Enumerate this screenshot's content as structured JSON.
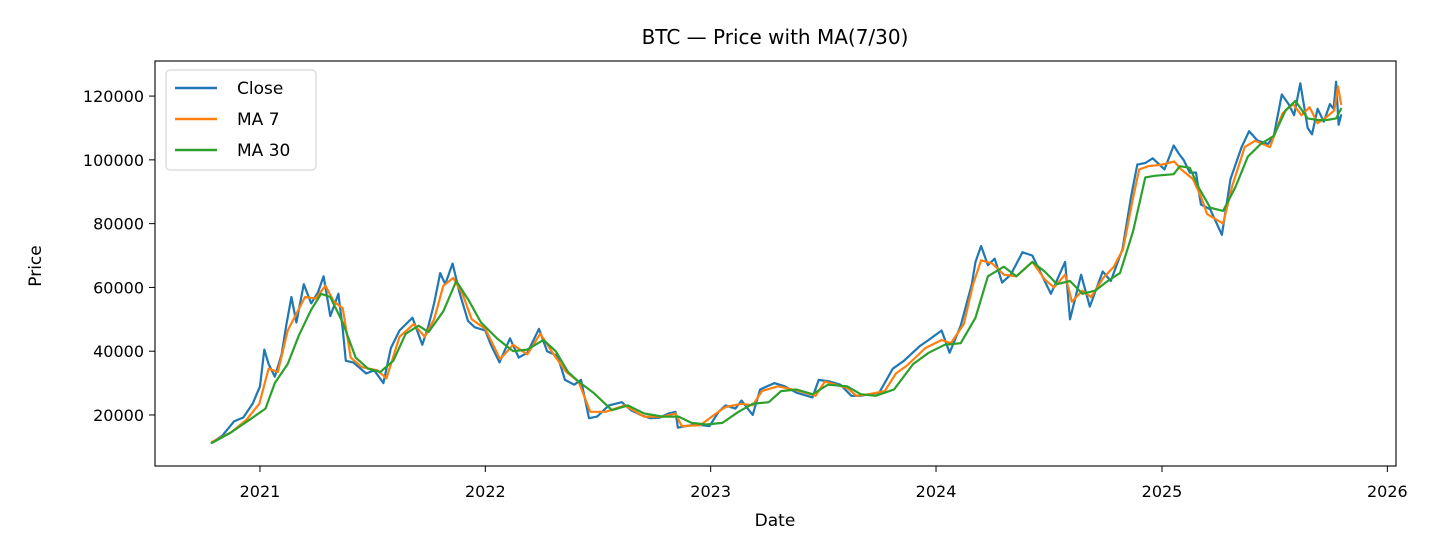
{
  "chart_data": {
    "type": "line",
    "title": "BTC — Price with MA(7/30)",
    "xlabel": "Date",
    "ylabel": "Price",
    "xlim": [
      "2020-07-15",
      "2026-01-15"
    ],
    "ylim": [
      4000,
      131000
    ],
    "x_ticks": [
      "2021",
      "2022",
      "2023",
      "2024",
      "2025",
      "2026"
    ],
    "y_ticks": [
      20000,
      40000,
      60000,
      80000,
      100000,
      120000
    ],
    "grid": false,
    "legend_position": "upper-left",
    "colors": {
      "Close": "#1f77b4",
      "MA 7": "#ff7f0e",
      "MA 30": "#2ca02c"
    },
    "series": [
      {
        "name": "Close",
        "x": [
          "2020-10-15",
          "2020-11-01",
          "2020-11-20",
          "2020-12-05",
          "2020-12-20",
          "2021-01-01",
          "2021-01-08",
          "2021-01-15",
          "2021-01-25",
          "2021-02-05",
          "2021-02-12",
          "2021-02-21",
          "2021-03-01",
          "2021-03-13",
          "2021-03-25",
          "2021-04-05",
          "2021-04-14",
          "2021-04-25",
          "2021-05-08",
          "2021-05-15",
          "2021-05-20",
          "2021-06-01",
          "2021-06-10",
          "2021-06-22",
          "2021-07-05",
          "2021-07-20",
          "2021-08-01",
          "2021-08-15",
          "2021-09-05",
          "2021-09-21",
          "2021-10-01",
          "2021-10-10",
          "2021-10-20",
          "2021-10-28",
          "2021-11-09",
          "2021-11-20",
          "2021-12-04",
          "2021-12-15",
          "2022-01-01",
          "2022-01-10",
          "2022-01-24",
          "2022-02-10",
          "2022-02-24",
          "2022-03-10",
          "2022-03-29",
          "2022-04-11",
          "2022-04-28",
          "2022-05-10",
          "2022-05-25",
          "2022-06-05",
          "2022-06-18",
          "2022-07-01",
          "2022-07-20",
          "2022-08-10",
          "2022-08-25",
          "2022-09-10",
          "2022-09-25",
          "2022-10-10",
          "2022-10-25",
          "2022-11-05",
          "2022-11-09",
          "2022-11-21",
          "2022-12-10",
          "2022-12-30",
          "2023-01-14",
          "2023-01-25",
          "2023-02-10",
          "2023-02-20",
          "2023-03-10",
          "2023-03-22",
          "2023-04-14",
          "2023-05-01",
          "2023-05-20",
          "2023-06-15",
          "2023-06-25",
          "2023-07-13",
          "2023-07-30",
          "2023-08-17",
          "2023-09-01",
          "2023-09-15",
          "2023-10-01",
          "2023-10-23",
          "2023-11-10",
          "2023-12-05",
          "2023-12-20",
          "2024-01-10",
          "2024-01-23",
          "2024-02-10",
          "2024-02-28",
          "2024-03-05",
          "2024-03-14",
          "2024-03-25",
          "2024-04-05",
          "2024-04-17",
          "2024-05-01",
          "2024-05-20",
          "2024-06-05",
          "2024-06-25",
          "2024-07-05",
          "2024-07-28",
          "2024-08-05",
          "2024-08-23",
          "2024-09-06",
          "2024-09-27",
          "2024-10-10",
          "2024-10-29",
          "2024-11-12",
          "2024-11-22",
          "2024-12-05",
          "2024-12-17",
          "2025-01-05",
          "2025-01-20",
          "2025-01-28",
          "2025-02-05",
          "2025-02-15",
          "2025-02-25",
          "2025-03-05",
          "2025-03-20",
          "2025-04-08",
          "2025-04-22",
          "2025-05-10",
          "2025-05-22",
          "2025-06-05",
          "2025-06-22",
          "2025-07-01",
          "2025-07-14",
          "2025-07-25",
          "2025-08-03",
          "2025-08-13",
          "2025-08-25",
          "2025-09-01",
          "2025-09-10",
          "2025-09-20",
          "2025-09-30",
          "2025-10-06",
          "2025-10-10",
          "2025-10-14",
          "2025-10-18"
        ],
        "values": [
          11300,
          13500,
          18000,
          19200,
          23500,
          29000,
          40500,
          36000,
          32000,
          39000,
          47500,
          57000,
          49000,
          61000,
          55000,
          58500,
          63500,
          51000,
          58000,
          47000,
          37000,
          36500,
          35000,
          33000,
          34000,
          30000,
          41000,
          46500,
          50500,
          42000,
          48000,
          55000,
          64500,
          61000,
          67500,
          58500,
          49500,
          47500,
          46500,
          42000,
          36500,
          44000,
          38000,
          39500,
          47000,
          40000,
          38500,
          31000,
          29500,
          31000,
          19000,
          19500,
          23000,
          24000,
          21500,
          20000,
          19000,
          19100,
          20500,
          21000,
          16000,
          16500,
          17000,
          16500,
          21000,
          23000,
          22000,
          24500,
          20000,
          28000,
          30000,
          29000,
          27000,
          25500,
          31000,
          30500,
          29500,
          26000,
          26000,
          26500,
          27000,
          34500,
          37000,
          41500,
          43500,
          46500,
          39500,
          48000,
          61000,
          68000,
          73000,
          67000,
          69000,
          61500,
          64000,
          71000,
          70000,
          62000,
          58000,
          68000,
          50000,
          64000,
          54000,
          65000,
          62000,
          72000,
          88500,
          98500,
          99000,
          100500,
          97000,
          104500,
          102000,
          100000,
          96000,
          96000,
          86000,
          84500,
          76500,
          94000,
          104000,
          109000,
          106000,
          105000,
          107500,
          120500,
          117500,
          114000,
          124000,
          110000,
          108000,
          116000,
          112000,
          117500,
          116000,
          124500,
          111000,
          114000
        ]
      },
      {
        "name": "MA 7",
        "x": [
          "2020-10-15",
          "2020-11-15",
          "2020-12-10",
          "2020-12-31",
          "2021-01-15",
          "2021-01-30",
          "2021-02-15",
          "2021-02-27",
          "2021-03-15",
          "2021-04-01",
          "2021-04-17",
          "2021-05-01",
          "2021-05-15",
          "2021-05-28",
          "2021-06-15",
          "2021-07-10",
          "2021-07-25",
          "2021-08-15",
          "2021-09-07",
          "2021-09-25",
          "2021-10-10",
          "2021-10-25",
          "2021-11-10",
          "2021-11-25",
          "2021-12-10",
          "2022-01-01",
          "2022-01-25",
          "2022-02-15",
          "2022-03-10",
          "2022-03-31",
          "2022-04-20",
          "2022-05-12",
          "2022-06-01",
          "2022-06-20",
          "2022-07-15",
          "2022-08-15",
          "2022-09-15",
          "2022-10-15",
          "2022-11-05",
          "2022-11-15",
          "2022-12-15",
          "2023-01-10",
          "2023-01-25",
          "2023-02-20",
          "2023-03-10",
          "2023-03-25",
          "2023-04-20",
          "2023-05-25",
          "2023-06-20",
          "2023-07-05",
          "2023-08-10",
          "2023-08-25",
          "2023-09-15",
          "2023-10-10",
          "2023-10-28",
          "2023-11-15",
          "2023-12-15",
          "2024-01-10",
          "2024-01-25",
          "2024-02-15",
          "2024-03-01",
          "2024-03-14",
          "2024-04-01",
          "2024-04-20",
          "2024-05-10",
          "2024-06-05",
          "2024-06-25",
          "2024-07-10",
          "2024-07-28",
          "2024-08-08",
          "2024-08-25",
          "2024-09-08",
          "2024-09-28",
          "2024-10-15",
          "2024-10-30",
          "2024-11-15",
          "2024-11-25",
          "2024-12-10",
          "2025-01-01",
          "2025-01-21",
          "2025-02-01",
          "2025-02-20",
          "2025-03-05",
          "2025-03-15",
          "2025-04-10",
          "2025-04-25",
          "2025-05-15",
          "2025-06-01",
          "2025-06-25",
          "2025-07-15",
          "2025-08-01",
          "2025-08-15",
          "2025-08-28",
          "2025-09-10",
          "2025-09-25",
          "2025-10-07",
          "2025-10-13",
          "2025-10-18"
        ],
        "values": [
          11500,
          14500,
          18500,
          23500,
          34500,
          33500,
          46500,
          51000,
          57000,
          56500,
          60500,
          55500,
          53500,
          38000,
          35000,
          34000,
          31500,
          44500,
          48500,
          44500,
          50000,
          60500,
          63000,
          58000,
          50000,
          47000,
          37500,
          42000,
          39000,
          45500,
          39500,
          33500,
          30500,
          21000,
          21000,
          23000,
          19500,
          19500,
          20500,
          16500,
          16800,
          20500,
          22500,
          23500,
          23000,
          27500,
          29000,
          27500,
          26000,
          30500,
          28500,
          26000,
          26500,
          27500,
          33000,
          35500,
          41000,
          43500,
          42500,
          48500,
          61000,
          68500,
          67500,
          64000,
          63500,
          68000,
          62500,
          60000,
          64000,
          55500,
          59000,
          57000,
          63000,
          66500,
          72000,
          88000,
          97000,
          98000,
          98500,
          99500,
          97000,
          94000,
          88500,
          83000,
          80000,
          92000,
          104000,
          106000,
          104000,
          114500,
          117500,
          114000,
          116500,
          111500,
          113500,
          115500,
          123000,
          117500
        ]
      },
      {
        "name": "MA 30",
        "x": [
          "2020-10-15",
          "2020-11-15",
          "2020-12-15",
          "2021-01-10",
          "2021-01-25",
          "2021-02-15",
          "2021-03-05",
          "2021-03-25",
          "2021-04-10",
          "2021-04-25",
          "2021-05-15",
          "2021-06-05",
          "2021-06-25",
          "2021-07-15",
          "2021-08-05",
          "2021-08-25",
          "2021-09-15",
          "2021-10-01",
          "2021-10-25",
          "2021-11-15",
          "2021-12-05",
          "2021-12-25",
          "2022-01-20",
          "2022-02-15",
          "2022-03-10",
          "2022-04-05",
          "2022-04-25",
          "2022-05-15",
          "2022-06-01",
          "2022-06-25",
          "2022-07-25",
          "2022-08-20",
          "2022-09-15",
          "2022-10-15",
          "2022-11-10",
          "2022-12-01",
          "2022-12-25",
          "2023-01-20",
          "2023-02-15",
          "2023-03-10",
          "2023-04-05",
          "2023-04-25",
          "2023-05-20",
          "2023-06-15",
          "2023-07-10",
          "2023-08-10",
          "2023-09-01",
          "2023-09-25",
          "2023-10-25",
          "2023-11-25",
          "2023-12-20",
          "2024-01-15",
          "2024-02-10",
          "2024-03-05",
          "2024-03-25",
          "2024-04-20",
          "2024-05-10",
          "2024-06-05",
          "2024-06-25",
          "2024-07-15",
          "2024-08-05",
          "2024-08-25",
          "2024-09-15",
          "2024-10-05",
          "2024-10-25",
          "2024-11-15",
          "2024-12-05",
          "2024-12-20",
          "2025-01-20",
          "2025-01-30",
          "2025-02-15",
          "2025-03-01",
          "2025-03-20",
          "2025-04-10",
          "2025-04-30",
          "2025-05-20",
          "2025-06-10",
          "2025-07-01",
          "2025-07-20",
          "2025-08-05",
          "2025-08-25",
          "2025-09-10",
          "2025-09-25",
          "2025-10-10",
          "2025-10-18"
        ],
        "values": [
          11200,
          14500,
          18500,
          22000,
          30000,
          36000,
          45000,
          53000,
          58000,
          57000,
          49000,
          38000,
          34500,
          33500,
          37000,
          45500,
          48000,
          46000,
          52500,
          62000,
          56000,
          49000,
          44000,
          40000,
          40500,
          43500,
          40000,
          33500,
          30500,
          27000,
          21500,
          23000,
          20500,
          19500,
          19500,
          17500,
          17000,
          17500,
          21000,
          23500,
          24000,
          27500,
          28000,
          26500,
          29500,
          29000,
          26500,
          26000,
          28000,
          36000,
          39500,
          42000,
          42500,
          50500,
          63500,
          66500,
          63500,
          68000,
          65000,
          61000,
          62000,
          58000,
          59000,
          62000,
          64500,
          77500,
          94500,
          95000,
          95500,
          98000,
          97500,
          91500,
          85000,
          84000,
          91500,
          101000,
          105000,
          107500,
          115500,
          118500,
          113000,
          112500,
          112500,
          113000,
          116000
        ]
      }
    ]
  }
}
